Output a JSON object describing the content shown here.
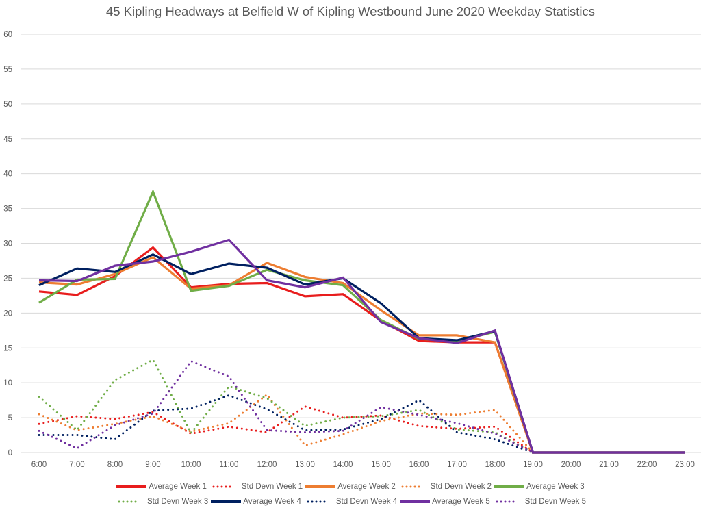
{
  "chart_data": {
    "type": "line",
    "title": "45 Kipling Headways at Belfield W of Kipling Westbound June 2020 Weekday Statistics",
    "xlabel": "",
    "ylabel": "",
    "ylim": [
      0,
      60
    ],
    "yticks": [
      0,
      5,
      10,
      15,
      20,
      25,
      30,
      35,
      40,
      45,
      50,
      55,
      60
    ],
    "grid": true,
    "legend_position": "bottom",
    "categories": [
      "6:00",
      "7:00",
      "8:00",
      "9:00",
      "10:00",
      "11:00",
      "12:00",
      "13:00",
      "14:00",
      "15:00",
      "16:00",
      "17:00",
      "18:00",
      "19:00",
      "20:00",
      "21:00",
      "22:00",
      "23:00"
    ],
    "series": [
      {
        "name": "Average Week 1",
        "color": "#E81D1D",
        "style": "solid",
        "values": [
          23.1,
          22.6,
          25.3,
          29.4,
          23.7,
          24.2,
          24.3,
          22.4,
          22.7,
          18.9,
          16.0,
          15.8,
          15.8,
          0,
          0,
          0,
          0,
          0
        ]
      },
      {
        "name": "Std Devn Week 1",
        "color": "#E81D1D",
        "style": "dotted",
        "values": [
          4.1,
          5.2,
          4.8,
          5.8,
          2.7,
          3.7,
          2.9,
          6.6,
          5.0,
          5.3,
          3.8,
          3.4,
          3.7,
          0,
          null,
          null,
          null,
          null
        ]
      },
      {
        "name": "Average Week 2",
        "color": "#ED7D31",
        "style": "solid",
        "values": [
          24.4,
          24.1,
          25.6,
          28.0,
          23.5,
          24.0,
          27.2,
          25.2,
          24.3,
          20.4,
          16.8,
          16.8,
          15.8,
          0,
          0,
          0,
          0,
          0
        ]
      },
      {
        "name": "Std Devn Week 2",
        "color": "#ED7D31",
        "style": "dotted",
        "values": [
          5.5,
          3.2,
          4.1,
          5.2,
          3.0,
          4.2,
          8.3,
          1.0,
          2.6,
          4.5,
          5.6,
          5.4,
          6.1,
          0,
          null,
          null,
          null,
          null
        ]
      },
      {
        "name": "Average Week 3",
        "color": "#70AD47",
        "style": "solid",
        "values": [
          21.5,
          24.8,
          24.9,
          37.4,
          23.2,
          23.9,
          26.2,
          24.7,
          24.0,
          19.0,
          16.3,
          16.0,
          17.3,
          0,
          0,
          0,
          0,
          0
        ]
      },
      {
        "name": "Std Devn Week 3",
        "color": "#70AD47",
        "style": "dotted",
        "values": [
          8.0,
          3.2,
          10.4,
          13.3,
          2.8,
          9.5,
          7.8,
          3.8,
          5.0,
          5.2,
          6.1,
          3.3,
          2.9,
          0,
          null,
          null,
          null,
          null
        ]
      },
      {
        "name": "Average Week 4",
        "color": "#002060",
        "style": "solid",
        "values": [
          24.0,
          26.4,
          25.9,
          28.4,
          25.6,
          27.1,
          26.5,
          24.1,
          25.0,
          21.4,
          16.4,
          16.1,
          17.4,
          0,
          0,
          0,
          0,
          0
        ]
      },
      {
        "name": "Std Devn Week 4",
        "color": "#002060",
        "style": "dotted",
        "values": [
          2.5,
          2.5,
          1.9,
          6.0,
          6.3,
          8.2,
          6.2,
          3.2,
          3.3,
          4.8,
          7.5,
          2.9,
          1.9,
          0,
          null,
          null,
          null,
          null
        ]
      },
      {
        "name": "Average Week 5",
        "color": "#7030A0",
        "style": "solid",
        "values": [
          24.7,
          24.6,
          26.8,
          27.4,
          28.8,
          30.5,
          24.7,
          23.7,
          25.1,
          18.7,
          16.4,
          15.7,
          17.5,
          0,
          0,
          0,
          0,
          0
        ]
      },
      {
        "name": "Std Devn Week 5",
        "color": "#7030A0",
        "style": "dotted",
        "values": [
          3.1,
          0.6,
          3.9,
          5.6,
          13.1,
          10.9,
          3.2,
          2.9,
          3.1,
          6.5,
          5.4,
          4.2,
          2.7,
          0,
          null,
          null,
          null,
          null
        ]
      }
    ]
  }
}
